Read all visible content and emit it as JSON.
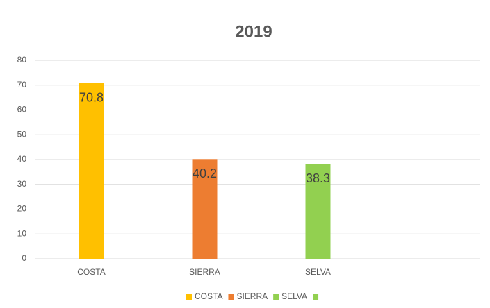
{
  "chart_data": {
    "type": "bar",
    "title": "2019",
    "categories": [
      "COSTA",
      "SIERRA",
      "SELVA",
      null
    ],
    "values": [
      70.8,
      40.2,
      38.3,
      null
    ],
    "colors": [
      "#ffc000",
      "#ed7d31",
      "#92d050",
      "#92d050"
    ],
    "ylim": [
      0,
      80
    ],
    "yticks": [
      0,
      10,
      20,
      30,
      40,
      50,
      60,
      70,
      80
    ],
    "grid": true,
    "data_labels": true,
    "legend": "bottom"
  }
}
